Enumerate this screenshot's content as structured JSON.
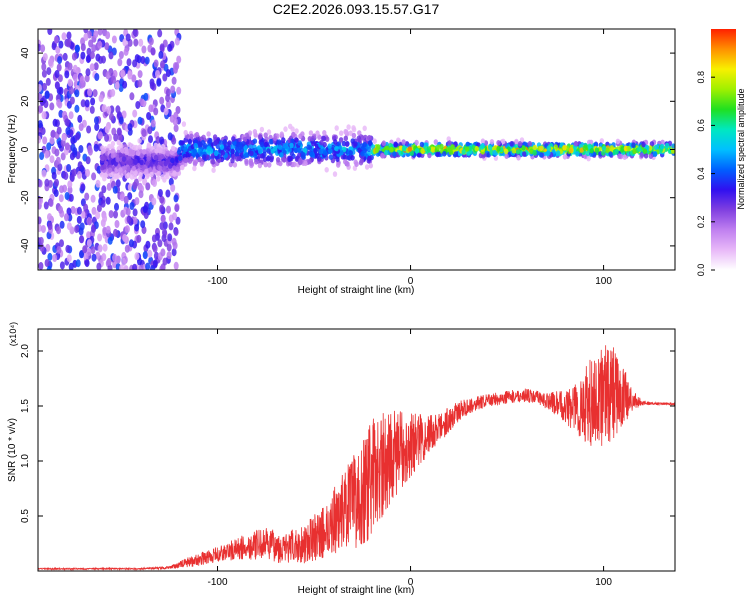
{
  "figure": {
    "title": "C2E2.2026.093.15.57.G17"
  },
  "chart_data": [
    {
      "type": "heatmap",
      "name": "spectrogram",
      "xlabel": "Height of straight line (km)",
      "ylabel": "Frequency (Hz)",
      "xlim": [
        -193,
        137
      ],
      "ylim": [
        -50,
        50
      ],
      "xticks": [
        -100,
        0,
        100
      ],
      "xtick_labels": [
        "-100",
        "0",
        "100"
      ],
      "yticks": [
        -40,
        -20,
        0,
        20,
        40
      ],
      "ytick_labels": [
        "-40",
        "-20",
        "0",
        "20",
        "40"
      ],
      "colorbar": {
        "label": "Normalized spectral amplitude",
        "range": [
          0,
          1
        ],
        "ticks": [
          0.0,
          0.2,
          0.4,
          0.6,
          0.8
        ],
        "tick_labels": [
          "0.0",
          "0.2",
          "0.4",
          "0.6",
          "0.8"
        ],
        "colormap": [
          "#ffffff",
          "#e8b8f8",
          "#c080f0",
          "#8040e0",
          "#3010f0",
          "#0060ff",
          "#00c0ff",
          "#00e8c0",
          "#20e020",
          "#a0f000",
          "#f8f000",
          "#ff9000",
          "#ff2000"
        ]
      },
      "regions": [
        {
          "x_range": [
            -193,
            -120
          ],
          "description_level": "noise",
          "freq_spread": 50,
          "peak_amplitude": 0.3
        },
        {
          "x_range": [
            -160,
            -120
          ],
          "freq_center": -5,
          "freq_spread": 8,
          "peak_amplitude": 0.35
        },
        {
          "x_range": [
            -120,
            -20
          ],
          "freq_center": 0,
          "freq_spread": 10,
          "peak_amplitude": 0.55
        },
        {
          "x_range": [
            -20,
            137
          ],
          "freq_center": 0,
          "freq_spread": 4,
          "peak_amplitude": 0.95
        }
      ]
    },
    {
      "type": "line",
      "name": "snr",
      "xlabel": "Height of straight line (km)",
      "ylabel": "SNR (10 * v/v)",
      "multiplier_label": "(x10⁴)",
      "xlim": [
        -193,
        137
      ],
      "ylim": [
        0,
        2.2
      ],
      "xticks": [
        -100,
        0,
        100
      ],
      "xtick_labels": [
        "-100",
        "0",
        "100"
      ],
      "yticks": [
        0.5,
        1.0,
        1.5,
        2.0
      ],
      "ytick_labels": [
        "0.5",
        "1.0",
        "1.5",
        "2.0"
      ],
      "color": "#e83030",
      "series": [
        {
          "name": "SNR",
          "x": [
            -193,
            -180,
            -160,
            -140,
            -125,
            -115,
            -100,
            -85,
            -75,
            -65,
            -55,
            -45,
            -35,
            -25,
            -20,
            -15,
            -10,
            -5,
            0,
            5,
            10,
            15,
            20,
            25,
            30,
            40,
            50,
            60,
            70,
            80,
            85,
            90,
            95,
            100,
            105,
            110,
            115,
            120,
            125,
            137
          ],
          "y": [
            0.02,
            0.02,
            0.02,
            0.02,
            0.03,
            0.08,
            0.15,
            0.22,
            0.25,
            0.2,
            0.25,
            0.35,
            0.55,
            0.7,
            0.85,
            0.95,
            1.05,
            1.1,
            1.15,
            1.2,
            1.25,
            1.3,
            1.38,
            1.45,
            1.5,
            1.55,
            1.58,
            1.6,
            1.55,
            1.5,
            1.48,
            1.5,
            1.55,
            1.6,
            1.62,
            1.58,
            1.55,
            1.53,
            1.52,
            1.52
          ],
          "noise": [
            0.005,
            0.005,
            0.005,
            0.005,
            0.01,
            0.04,
            0.06,
            0.1,
            0.12,
            0.12,
            0.15,
            0.2,
            0.3,
            0.4,
            0.45,
            0.4,
            0.35,
            0.3,
            0.25,
            0.2,
            0.15,
            0.12,
            0.1,
            0.08,
            0.06,
            0.05,
            0.05,
            0.05,
            0.06,
            0.12,
            0.2,
            0.3,
            0.35,
            0.4,
            0.35,
            0.25,
            0.08,
            0.02,
            0.01,
            0.01
          ]
        }
      ]
    }
  ]
}
